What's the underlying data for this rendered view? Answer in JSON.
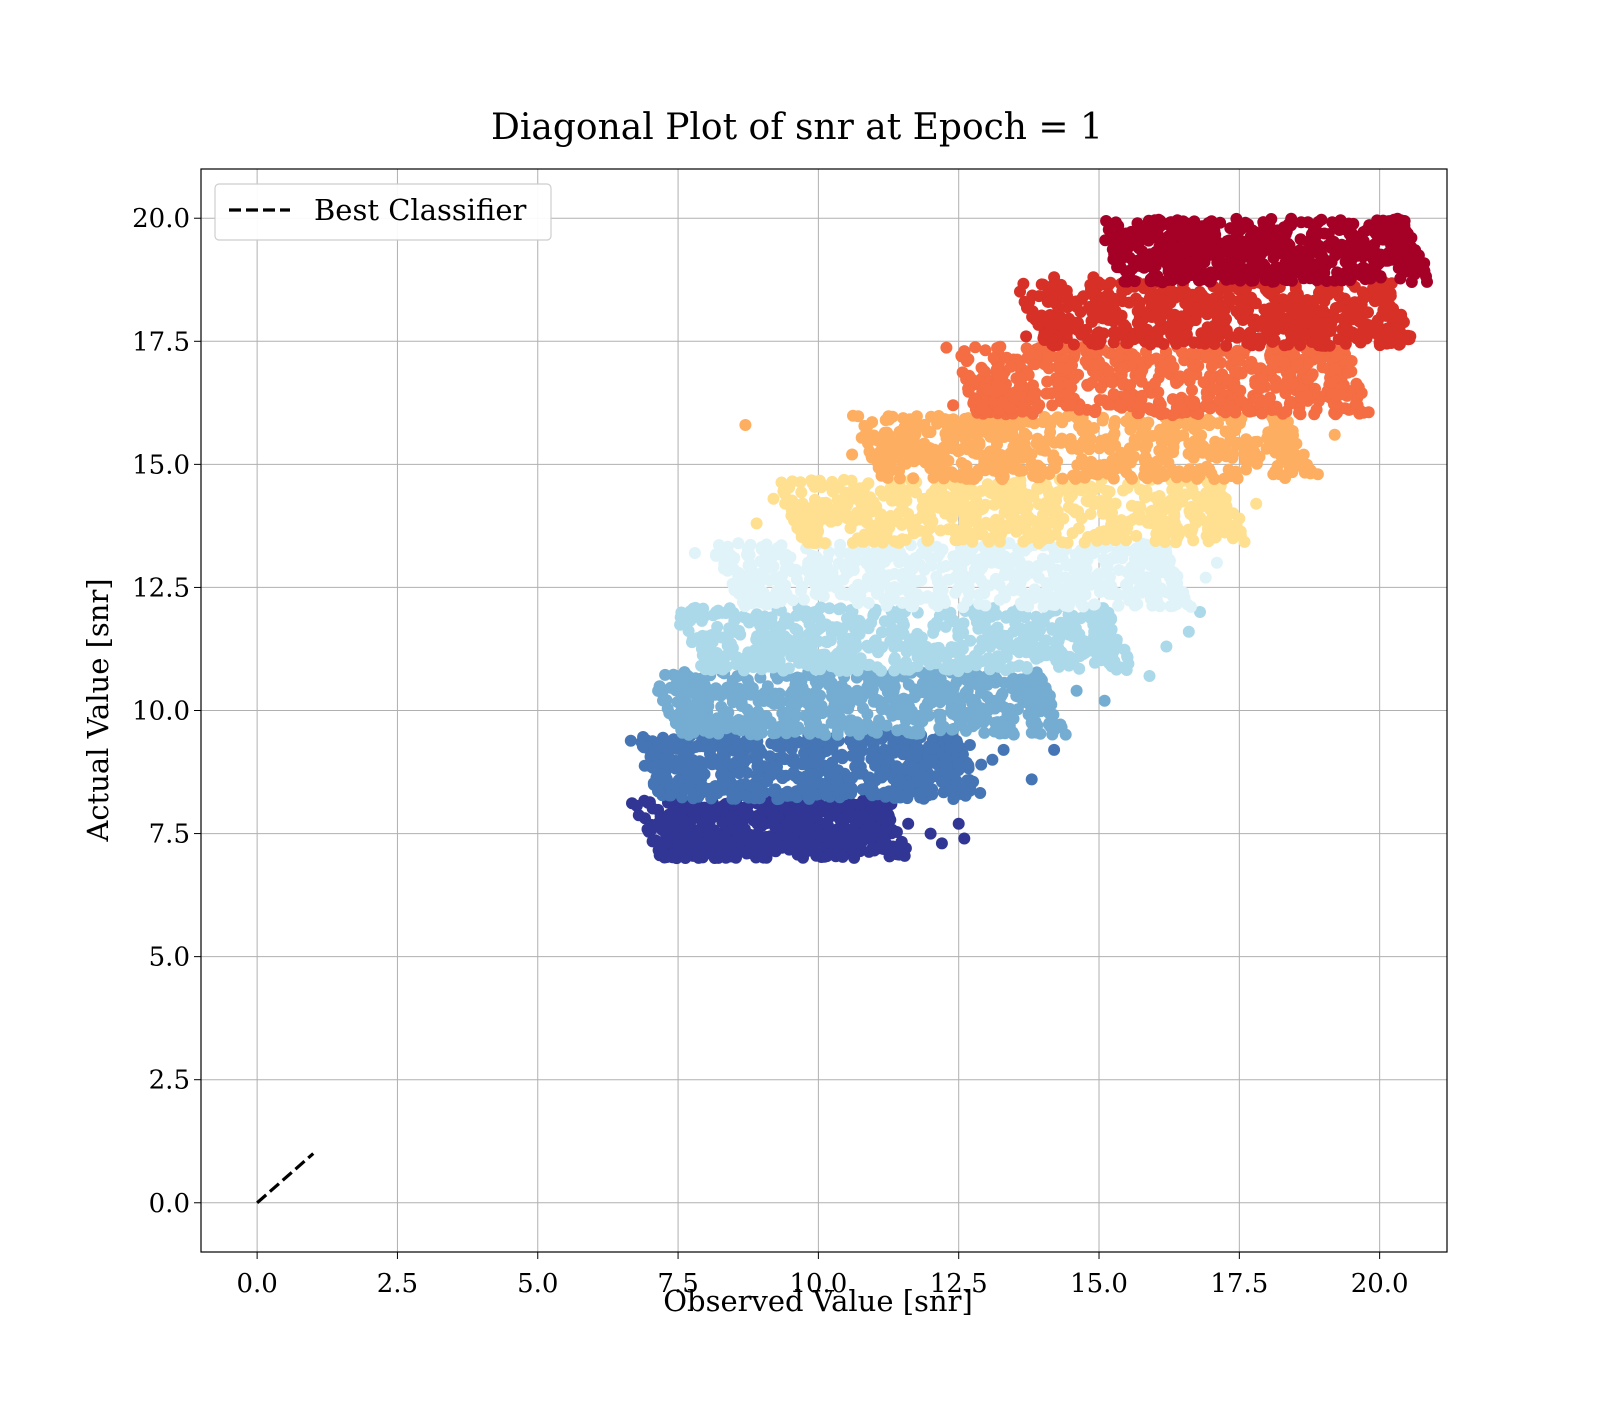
{
  "chart_data": {
    "type": "scatter",
    "title": "Diagonal Plot of snr at Epoch = 1",
    "xlabel": "Observed Value [snr]",
    "ylabel": "Actual Value [snr]",
    "xlim": [
      -1.0,
      21.2
    ],
    "ylim": [
      -1.0,
      21.0
    ],
    "x_ticks": [
      0.0,
      2.5,
      5.0,
      7.5,
      10.0,
      12.5,
      15.0,
      17.5,
      20.0
    ],
    "y_ticks": [
      0.0,
      2.5,
      5.0,
      7.5,
      10.0,
      12.5,
      15.0,
      17.5,
      20.0
    ],
    "x_tick_labels": [
      "0.0",
      "2.5",
      "5.0",
      "7.5",
      "10.0",
      "12.5",
      "15.0",
      "17.5",
      "20.0"
    ],
    "y_tick_labels": [
      "0.0",
      "2.5",
      "5.0",
      "7.5",
      "10.0",
      "12.5",
      "15.0",
      "17.5",
      "20.0"
    ],
    "grid": true,
    "legend_position": "top-left",
    "reference_line": {
      "name": "Best Classifier",
      "style": "dashed",
      "color": "#000000",
      "x": [
        0.0,
        1.0
      ],
      "y": [
        0.0,
        1.0
      ]
    },
    "colormap": "RdYlBu (reversed), binned by actual value",
    "bands": [
      {
        "y_range": [
          7.0,
          8.2
        ],
        "x_core": [
          7.35,
          10.9
        ],
        "color": "#313695",
        "outliers": [
          [
            11.3,
            8.1
          ],
          [
            11.6,
            7.7
          ],
          [
            12.0,
            7.5
          ],
          [
            12.2,
            7.3
          ],
          [
            12.5,
            7.7
          ],
          [
            12.6,
            7.4
          ],
          [
            11.1,
            7.2
          ]
        ]
      },
      {
        "y_range": [
          8.2,
          9.5
        ],
        "x_core": [
          7.35,
          12.2
        ],
        "color": "#4575b4",
        "outliers": [
          [
            12.7,
            9.3
          ],
          [
            13.3,
            9.2
          ],
          [
            13.8,
            8.6
          ],
          [
            13.1,
            9.0
          ],
          [
            14.2,
            9.2
          ],
          [
            12.9,
            8.9
          ]
        ]
      },
      {
        "y_range": [
          9.5,
          10.8
        ],
        "x_core": [
          7.7,
          13.7
        ],
        "color": "#74add1",
        "outliers": [
          [
            15.1,
            10.2
          ],
          [
            14.2,
            9.6
          ],
          [
            14.6,
            10.4
          ],
          [
            13.9,
            9.7
          ]
        ]
      },
      {
        "y_range": [
          10.8,
          12.1
        ],
        "x_core": [
          8.1,
          14.9
        ],
        "color": "#abd9e9",
        "outliers": [
          [
            15.9,
            10.7
          ],
          [
            16.2,
            11.3
          ],
          [
            15.5,
            11.1
          ],
          [
            16.6,
            11.6
          ],
          [
            16.8,
            12.0
          ]
        ]
      },
      {
        "y_range": [
          12.1,
          13.4
        ],
        "x_core": [
          8.8,
          15.9
        ],
        "color": "#e0f3f8",
        "outliers": [
          [
            7.8,
            13.2
          ],
          [
            8.5,
            13.1
          ],
          [
            16.9,
            12.7
          ],
          [
            17.1,
            13.0
          ],
          [
            16.5,
            12.4
          ]
        ]
      },
      {
        "y_range": [
          13.4,
          14.7
        ],
        "x_core": [
          9.9,
          16.9
        ],
        "color": "#fee090",
        "outliers": [
          [
            8.9,
            13.8
          ],
          [
            9.2,
            14.3
          ],
          [
            9.4,
            14.4
          ],
          [
            17.5,
            13.9
          ],
          [
            17.8,
            14.2
          ]
        ]
      },
      {
        "y_range": [
          14.7,
          16.0
        ],
        "x_core": [
          11.3,
          18.1
        ],
        "color": "#fdae61",
        "outliers": [
          [
            8.7,
            15.8
          ],
          [
            11.2,
            15.9
          ],
          [
            10.6,
            15.2
          ],
          [
            18.6,
            15.0
          ],
          [
            18.9,
            14.8
          ],
          [
            19.2,
            15.6
          ]
        ]
      },
      {
        "y_range": [
          16.0,
          17.4
        ],
        "x_core": [
          13.0,
          19.1
        ],
        "color": "#f46d43",
        "outliers": [
          [
            12.6,
            17.3
          ],
          [
            12.8,
            16.3
          ],
          [
            13.2,
            16.8
          ],
          [
            12.4,
            16.2
          ],
          [
            19.5,
            17.1
          ]
        ]
      },
      {
        "y_range": [
          17.4,
          18.7
        ],
        "x_core": [
          14.2,
          19.9
        ],
        "color": "#d73027",
        "outliers": [
          [
            13.7,
            17.6
          ],
          [
            14.1,
            18.3
          ],
          [
            14.2,
            18.8
          ],
          [
            14.6,
            18.2
          ],
          [
            14.9,
            18.8
          ]
        ]
      },
      {
        "y_range": [
          18.7,
          20.0
        ],
        "x_core": [
          15.6,
          20.2
        ],
        "color": "#a50026",
        "outliers": [
          [
            15.3,
            19.9
          ],
          [
            15.5,
            19.4
          ],
          [
            16.0,
            19.9
          ],
          [
            15.8,
            19.2
          ],
          [
            16.3,
            19.6
          ]
        ]
      }
    ]
  }
}
